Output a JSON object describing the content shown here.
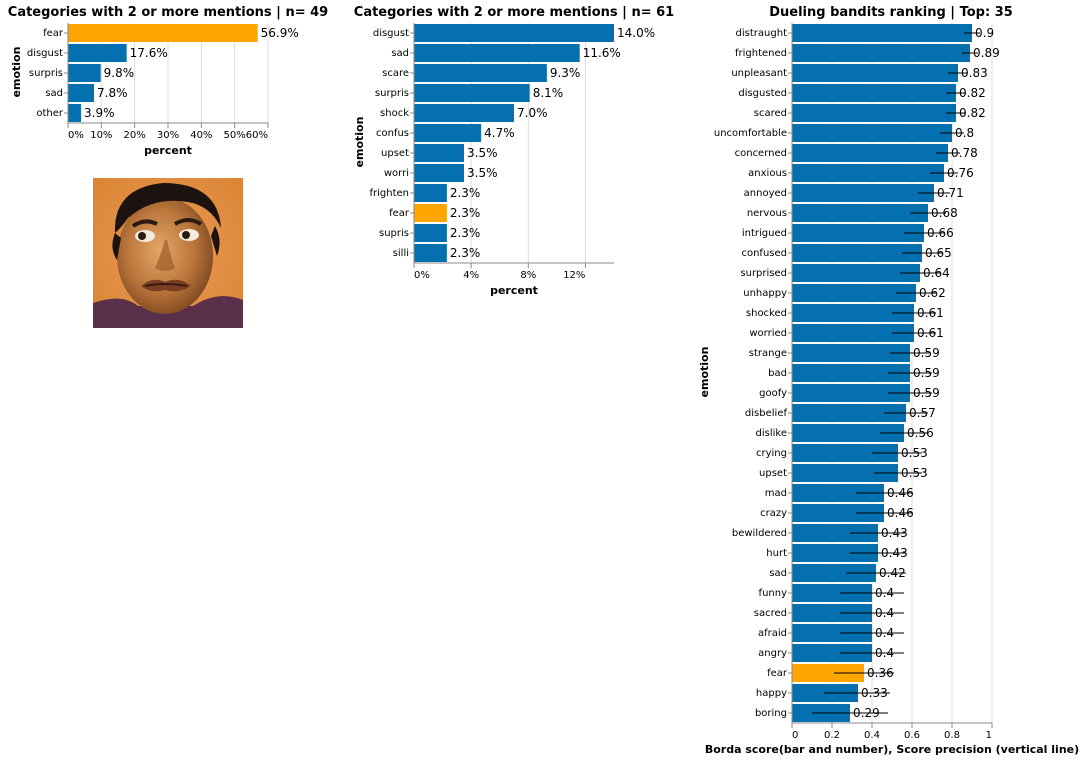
{
  "colors": {
    "bar": "#0570b0",
    "highlight": "#ffa500",
    "errorbar": "#000000"
  },
  "photo": {
    "description_icon": "face-photo",
    "name": "face-photo"
  },
  "chart_data": [
    {
      "type": "bar",
      "title": "Categories with 2 or more mentions | n= 49",
      "xlabel": "percent",
      "ylabel": "emotion",
      "highlight": "fear",
      "categories": [
        "fear",
        "disgust",
        "surpris",
        "sad",
        "other"
      ],
      "values": [
        56.9,
        17.6,
        9.8,
        7.8,
        3.9
      ],
      "labels": [
        "56.9%",
        "17.6%",
        "9.8%",
        "7.8%",
        "3.9%"
      ],
      "xlim": [
        0,
        60
      ],
      "xticks": [
        0,
        10,
        20,
        30,
        40,
        50,
        60
      ],
      "xtick_labels": [
        "0%",
        "10%",
        "20%",
        "30%",
        "40%",
        "50%",
        "60%"
      ],
      "grid": true
    },
    {
      "type": "bar",
      "title": "Categories with 2 or more mentions | n= 61",
      "xlabel": "percent",
      "ylabel": "emotion",
      "highlight": "fear",
      "categories": [
        "disgust",
        "sad",
        "scare",
        "surpris",
        "shock",
        "confus",
        "upset",
        "worri",
        "frighten",
        "fear",
        "supris",
        "silli"
      ],
      "values": [
        14.0,
        11.6,
        9.3,
        8.1,
        7.0,
        4.7,
        3.5,
        3.5,
        2.3,
        2.3,
        2.3,
        2.3
      ],
      "labels": [
        "14.0%",
        "11.6%",
        "9.3%",
        "8.1%",
        "7.0%",
        "4.7%",
        "3.5%",
        "3.5%",
        "2.3%",
        "2.3%",
        "2.3%",
        "2.3%"
      ],
      "xlim": [
        0,
        14
      ],
      "xticks": [
        0,
        4,
        8,
        12
      ],
      "xtick_labels": [
        "0%",
        "4%",
        "8%",
        "12%"
      ],
      "grid": true
    },
    {
      "type": "bar",
      "title": "Dueling bandits ranking | Top: 35",
      "xlabel": "Borda score(bar and number), Score precision (vertical line)",
      "ylabel": "emotion",
      "highlight": "fear",
      "categories": [
        "distraught",
        "frightened",
        "unpleasant",
        "disgusted",
        "scared",
        "uncomfortable",
        "concerned",
        "anxious",
        "annoyed",
        "nervous",
        "intrigued",
        "confused",
        "surprised",
        "unhappy",
        "shocked",
        "worried",
        "strange",
        "bad",
        "goofy",
        "disbelief",
        "dislike",
        "crying",
        "upset",
        "mad",
        "crazy",
        "bewildered",
        "hurt",
        "sad",
        "funny",
        "sacred",
        "afraid",
        "angry",
        "fear",
        "happy",
        "boring"
      ],
      "values": [
        0.9,
        0.89,
        0.83,
        0.82,
        0.82,
        0.8,
        0.78,
        0.76,
        0.71,
        0.68,
        0.66,
        0.65,
        0.64,
        0.62,
        0.61,
        0.61,
        0.59,
        0.59,
        0.59,
        0.57,
        0.56,
        0.53,
        0.53,
        0.46,
        0.46,
        0.43,
        0.43,
        0.42,
        0.4,
        0.4,
        0.4,
        0.4,
        0.36,
        0.33,
        0.29
      ],
      "labels": [
        "0.9",
        "0.89",
        "0.83",
        "0.82",
        "0.82",
        "0.8",
        "0.78",
        "0.76",
        "0.71",
        "0.68",
        "0.66",
        "0.65",
        "0.64",
        "0.62",
        "0.61",
        "0.61",
        "0.59",
        "0.59",
        "0.59",
        "0.57",
        "0.56",
        "0.53",
        "0.53",
        "0.46",
        "0.46",
        "0.43",
        "0.43",
        "0.42",
        "0.4",
        "0.4",
        "0.4",
        "0.4",
        "0.36",
        "0.33",
        "0.29"
      ],
      "error_low": [
        0.86,
        0.85,
        0.78,
        0.77,
        0.77,
        0.74,
        0.72,
        0.69,
        0.63,
        0.59,
        0.56,
        0.55,
        0.54,
        0.52,
        0.5,
        0.5,
        0.49,
        0.48,
        0.48,
        0.46,
        0.44,
        0.4,
        0.41,
        0.32,
        0.32,
        0.29,
        0.29,
        0.27,
        0.24,
        0.24,
        0.24,
        0.24,
        0.21,
        0.16,
        0.1
      ],
      "error_high": [
        0.94,
        0.93,
        0.88,
        0.87,
        0.87,
        0.86,
        0.84,
        0.83,
        0.79,
        0.77,
        0.76,
        0.75,
        0.74,
        0.72,
        0.72,
        0.72,
        0.69,
        0.7,
        0.7,
        0.68,
        0.68,
        0.65,
        0.65,
        0.6,
        0.6,
        0.57,
        0.57,
        0.57,
        0.56,
        0.56,
        0.56,
        0.56,
        0.51,
        0.49,
        0.48
      ],
      "xlim": [
        0,
        1
      ],
      "xticks": [
        0,
        0.2,
        0.4,
        0.6,
        0.8,
        1
      ],
      "xtick_labels": [
        "0",
        "0.2",
        "0.4",
        "0.6",
        "0.8",
        "1"
      ],
      "grid": true
    }
  ]
}
